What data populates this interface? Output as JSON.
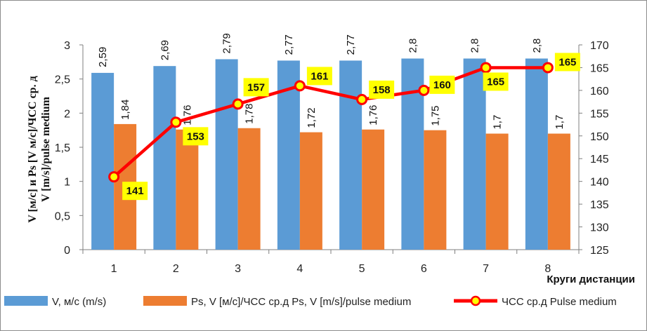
{
  "chart_data": {
    "type": "bar",
    "categories": [
      "1",
      "2",
      "3",
      "4",
      "5",
      "6",
      "7",
      "8"
    ],
    "series": [
      {
        "name": "V, м/с (m/s)",
        "type": "bar",
        "axis": "left",
        "color": "#5b9bd5",
        "values": [
          2.59,
          2.69,
          2.79,
          2.77,
          2.77,
          2.8,
          2.8,
          2.8
        ],
        "labels": [
          "2,59",
          "2,69",
          "2,79",
          "2,77",
          "2,77",
          "2,8",
          "2,8",
          "2,8"
        ]
      },
      {
        "name": "Ps, V [м/с]/ЧСС ср.д  Ps, V [m/s]/pulse medium",
        "type": "bar",
        "axis": "left",
        "color": "#ed7d31",
        "values": [
          1.84,
          1.76,
          1.78,
          1.72,
          1.76,
          1.75,
          1.7,
          1.7
        ],
        "labels": [
          "1,84",
          "1,76",
          "1,78",
          "1,72",
          "1,76",
          "1,75",
          "1,7",
          "1,7"
        ]
      },
      {
        "name": "ЧСС ср.д  Pulse medium",
        "type": "line",
        "axis": "right",
        "color": "#ff0000",
        "marker_fill": "#ffff00",
        "values": [
          141,
          153,
          157,
          161,
          158,
          160,
          165,
          165
        ],
        "labels": [
          "141",
          "153",
          "157",
          "161",
          "158",
          "160",
          "165",
          "165"
        ]
      }
    ],
    "y_left": {
      "min": 0,
      "max": 3,
      "step": 0.5,
      "tick_labels": [
        "0",
        "0,5",
        "1",
        "1,5",
        "2",
        "2,5",
        "3"
      ],
      "label": "V [м/с] и Ps [V м/с]/ЧСС ср. д  V [m/s]/pulse medium"
    },
    "y_right": {
      "min": 125,
      "max": 170,
      "step": 5,
      "tick_labels": [
        "125",
        "130",
        "135",
        "140",
        "145",
        "150",
        "155",
        "160",
        "165",
        "170"
      ]
    },
    "xlabel": "Круги дистанции",
    "grid": false,
    "legend_position": "bottom"
  }
}
